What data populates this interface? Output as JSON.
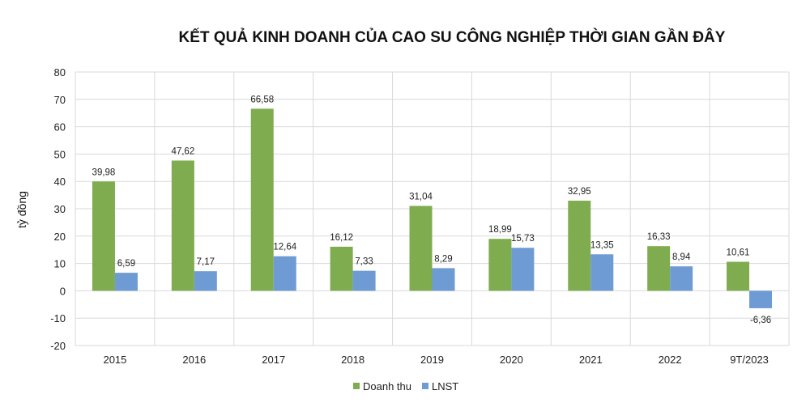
{
  "chart_data": {
    "type": "bar",
    "title": "KẾT QUẢ KINH DOANH CỦA CAO SU CÔNG NGHIỆP THỜI GIAN GẦN ĐÂY",
    "ylabel": "tỷ đồng",
    "xlabel": "",
    "ylim": [
      -20,
      80
    ],
    "yticks": [
      80,
      70,
      60,
      50,
      40,
      30,
      20,
      10,
      0,
      -10,
      -20
    ],
    "grid": true,
    "legend_position": "bottom",
    "categories": [
      "2015",
      "2016",
      "2017",
      "2018",
      "2019",
      "2020",
      "2021",
      "2022",
      "9T/2023"
    ],
    "series": [
      {
        "name": "Doanh thu",
        "color": "#7eac4f",
        "values": [
          39.98,
          47.62,
          66.58,
          16.12,
          31.04,
          18.99,
          32.95,
          16.33,
          10.61
        ],
        "labels": [
          "39,98",
          "47,62",
          "66,58",
          "16,12",
          "31,04",
          "18,99",
          "32,95",
          "16,33",
          "10,61"
        ]
      },
      {
        "name": "LNST",
        "color": "#6e9bd3",
        "values": [
          6.59,
          7.17,
          12.64,
          7.33,
          8.29,
          15.73,
          13.35,
          8.94,
          -6.36
        ],
        "labels": [
          "6,59",
          "7,17",
          "12,64",
          "7,33",
          "8,29",
          "15,73",
          "13,35",
          "8,94",
          "-6,36"
        ]
      }
    ]
  }
}
